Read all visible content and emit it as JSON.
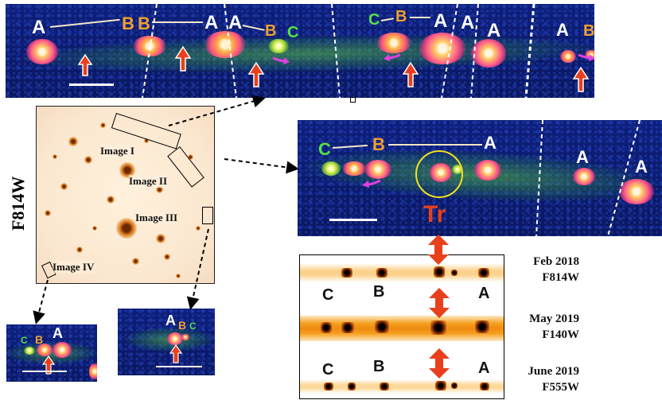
{
  "filter_vertical_label": "F814W",
  "letters": {
    "A": "A",
    "B": "B",
    "C": "C"
  },
  "field_image_labels": [
    "Image I",
    "Image II",
    "Image III",
    "Image IV"
  ],
  "transient_label": "Tr",
  "epochs": [
    {
      "date": "Feb 2018",
      "filter": "F814W"
    },
    {
      "date": "May 2019",
      "filter": "F140W"
    },
    {
      "date": "June 2019",
      "filter": "F555W"
    }
  ],
  "colors": {
    "label_A": "#ffffff",
    "label_B": "#f0a030",
    "label_C": "#58e048",
    "red_arrow": "#e8401c",
    "magenta_arrow": "#e040e0",
    "circle": "#f0e020"
  }
}
